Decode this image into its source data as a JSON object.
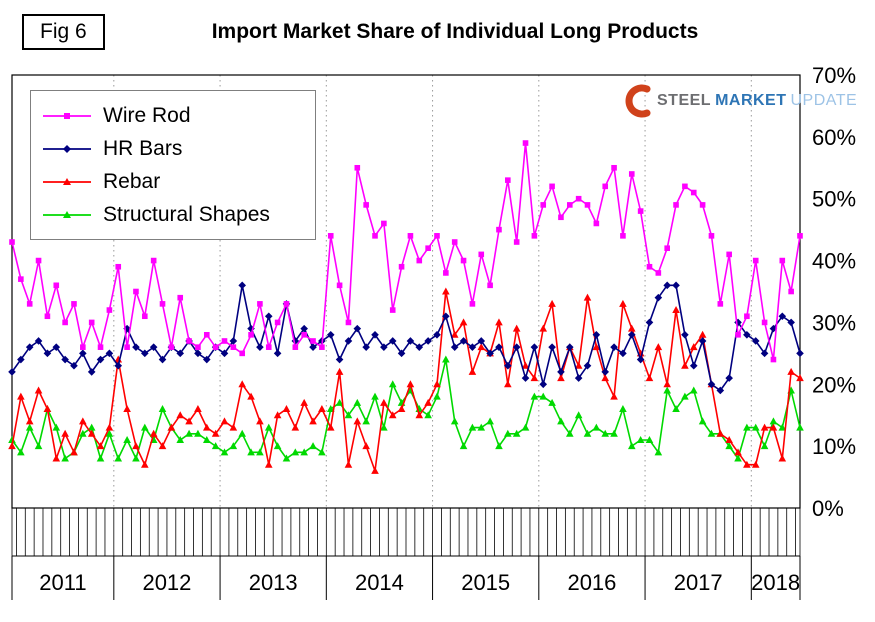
{
  "figure": {
    "label": "Fig 6",
    "title": "Import Market Share of Individual Long Products"
  },
  "logo": {
    "steel": "STEEL",
    "market": "MARKET",
    "update": "UPDATE",
    "swoosh_color": "#d0421b"
  },
  "chart_data": {
    "type": "line",
    "title": "Import Market Share of Individual Long Products",
    "x_unit": "month",
    "x_start": "2011-01",
    "x_end": "2018-06",
    "year_labels": [
      "2011",
      "2012",
      "2013",
      "2014",
      "2015",
      "2016",
      "2017",
      "2018"
    ],
    "months_per_year": [
      12,
      12,
      12,
      12,
      12,
      12,
      12,
      6
    ],
    "y_ticks": [
      "0%",
      "10%",
      "20%",
      "30%",
      "40%",
      "50%",
      "60%",
      "70%"
    ],
    "ylim": [
      0,
      70
    ],
    "grid": "vertical-dotted-at-year-boundaries",
    "legend_position": "top-left",
    "axis_labels_side": "right",
    "series": [
      {
        "name": "Wire Rod",
        "color": "#FF00FF",
        "marker": "square",
        "values": [
          43,
          37,
          33,
          40,
          31,
          36,
          30,
          33,
          26,
          30,
          26,
          32,
          39,
          26,
          35,
          31,
          40,
          33,
          26,
          34,
          27,
          26,
          28,
          26,
          27,
          26,
          25,
          28,
          33,
          26,
          30,
          33,
          26,
          28,
          27,
          26,
          44,
          36,
          30,
          55,
          49,
          44,
          46,
          32,
          39,
          44,
          40,
          42,
          44,
          38,
          43,
          40,
          33,
          41,
          36,
          45,
          53,
          43,
          59,
          44,
          49,
          52,
          47,
          49,
          50,
          49,
          46,
          52,
          55,
          44,
          54,
          48,
          39,
          38,
          42,
          49,
          52,
          51,
          49,
          44,
          33,
          41,
          28,
          31,
          40,
          30,
          24,
          40,
          35,
          44
        ]
      },
      {
        "name": "HR Bars",
        "color": "#000080",
        "marker": "diamond",
        "values": [
          22,
          24,
          26,
          27,
          25,
          26,
          24,
          23,
          25,
          22,
          24,
          25,
          23,
          29,
          26,
          25,
          26,
          24,
          26,
          25,
          27,
          25,
          24,
          26,
          25,
          27,
          36,
          29,
          26,
          31,
          25,
          33,
          27,
          29,
          26,
          27,
          28,
          24,
          27,
          29,
          26,
          28,
          26,
          27,
          25,
          27,
          26,
          27,
          28,
          31,
          26,
          27,
          26,
          27,
          25,
          26,
          23,
          26,
          21,
          26,
          20,
          26,
          22,
          26,
          21,
          23,
          28,
          22,
          26,
          25,
          28,
          24,
          30,
          34,
          36,
          36,
          28,
          23,
          27,
          20,
          19,
          21,
          30,
          28,
          27,
          25,
          29,
          31,
          30,
          25
        ]
      },
      {
        "name": "Rebar",
        "color": "#FF0000",
        "marker": "triangle",
        "values": [
          10,
          18,
          14,
          19,
          16,
          8,
          12,
          9,
          14,
          12,
          10,
          13,
          24,
          16,
          10,
          7,
          12,
          10,
          13,
          15,
          14,
          16,
          13,
          12,
          14,
          13,
          20,
          18,
          14,
          7,
          15,
          16,
          13,
          17,
          14,
          16,
          13,
          22,
          7,
          14,
          10,
          6,
          17,
          15,
          16,
          20,
          15,
          17,
          20,
          35,
          28,
          30,
          22,
          26,
          25,
          30,
          20,
          29,
          23,
          21,
          29,
          33,
          21,
          26,
          23,
          34,
          26,
          21,
          18,
          33,
          29,
          25,
          21,
          26,
          20,
          32,
          23,
          26,
          28,
          20,
          12,
          11,
          9,
          7,
          7,
          13,
          13,
          8,
          22,
          21
        ]
      },
      {
        "name": "Structural Shapes",
        "color": "#00D900",
        "marker": "triangle",
        "values": [
          11,
          9,
          13,
          10,
          16,
          13,
          8,
          9,
          12,
          13,
          8,
          12,
          8,
          11,
          8,
          13,
          11,
          16,
          13,
          11,
          12,
          12,
          11,
          10,
          9,
          10,
          12,
          9,
          9,
          13,
          10,
          8,
          9,
          9,
          10,
          9,
          16,
          17,
          15,
          17,
          14,
          18,
          13,
          20,
          17,
          19,
          16,
          15,
          18,
          24,
          14,
          10,
          13,
          13,
          14,
          10,
          12,
          12,
          13,
          18,
          18,
          17,
          14,
          12,
          15,
          12,
          13,
          12,
          12,
          16,
          10,
          11,
          11,
          9,
          19,
          16,
          18,
          19,
          14,
          12,
          12,
          10,
          8,
          13,
          13,
          10,
          14,
          13,
          19,
          13
        ]
      }
    ]
  }
}
